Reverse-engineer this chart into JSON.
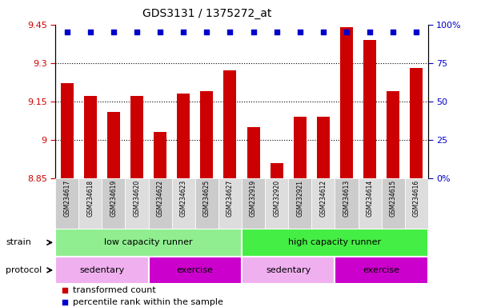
{
  "title": "GDS3131 / 1375272_at",
  "samples": [
    "GSM234617",
    "GSM234618",
    "GSM234619",
    "GSM234620",
    "GSM234622",
    "GSM234623",
    "GSM234625",
    "GSM234627",
    "GSM232919",
    "GSM232920",
    "GSM232921",
    "GSM234612",
    "GSM234613",
    "GSM234614",
    "GSM234615",
    "GSM234616"
  ],
  "bar_values": [
    9.22,
    9.17,
    9.11,
    9.17,
    9.03,
    9.18,
    9.19,
    9.27,
    9.05,
    8.91,
    9.09,
    9.09,
    9.44,
    9.39,
    9.19,
    9.28
  ],
  "percentile_values": [
    95,
    95,
    95,
    95,
    95,
    95,
    95,
    95,
    95,
    95,
    95,
    95,
    95,
    95,
    95,
    95
  ],
  "bar_color": "#cc0000",
  "percentile_color": "#0000cc",
  "ylim_left": [
    8.85,
    9.45
  ],
  "ylim_right": [
    0,
    100
  ],
  "yticks_left": [
    8.85,
    9.0,
    9.15,
    9.3,
    9.45
  ],
  "yticks_right": [
    0,
    25,
    50,
    75,
    100
  ],
  "ytick_labels_left": [
    "8.85",
    "9",
    "9.15",
    "9.3",
    "9.45"
  ],
  "ytick_labels_right": [
    "0%",
    "25",
    "50",
    "75",
    "100%"
  ],
  "grid_values": [
    9.0,
    9.15,
    9.3
  ],
  "bar_bottom": 8.85,
  "strain_labels": [
    "low capacity runner",
    "high capacity runner"
  ],
  "strain_xranges": [
    [
      0,
      8
    ],
    [
      8,
      16
    ]
  ],
  "strain_colors": [
    "#90ee90",
    "#44cc44"
  ],
  "protocol_labels": [
    "sedentary",
    "exercise",
    "sedentary",
    "exercise"
  ],
  "protocol_xranges": [
    [
      0,
      4
    ],
    [
      4,
      8
    ],
    [
      8,
      12
    ],
    [
      12,
      16
    ]
  ],
  "protocol_colors": [
    "#f0a0f0",
    "#dd44dd",
    "#f0a0f0",
    "#dd44dd"
  ],
  "legend_red_label": "transformed count",
  "legend_blue_label": "percentile rank within the sample",
  "axis_label_color_left": "#cc0000",
  "axis_label_color_right": "#0000cc"
}
